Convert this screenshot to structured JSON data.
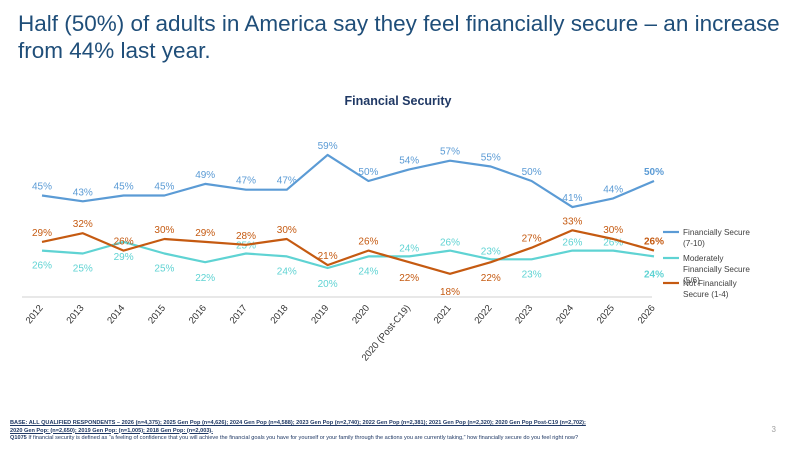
{
  "headline": "Half (50%) of adults in America say they feel financially secure – an increase from 44% last year.",
  "page_number": "3",
  "footer": {
    "base_line1": "BASE: ALL QUALIFIED RESPONDENTS – 2026 (n=4,375); 2025 Gen Pop (n=4,626); 2024 Gen Pop (n=4,588); 2023 Gen Pop (n=2,740); 2022 Gen Pop (n=2,381); 2021 Gen Pop (n=2,320); 2020 Gen Pop Post-C19 (n=2,702);",
    "base_line2": "2020 Gen Pop: (n=2,650); 2019 Gen Pop: (n=1,005); 2018 Gen Pop: (n=2,003).",
    "question_id": "Q1075",
    "question_text": " If financial security is defined as “a feeling of confidence that you will achieve the financial goals you have for yourself or your family through the actions you are currently taking,” how financially secure do you feel right now?"
  },
  "chart_data": {
    "type": "line",
    "title": "Financial Security",
    "xlabel": "",
    "ylabel": "",
    "ylim": [
      10,
      65
    ],
    "grid": false,
    "legend_position": "right",
    "categories": [
      "2012",
      "2013",
      "2014",
      "2015",
      "2016",
      "2017",
      "2018",
      "2019",
      "2020",
      "2020 (Post-C19)",
      "2021",
      "2022",
      "2023",
      "2024",
      "2025",
      "2026"
    ],
    "series": [
      {
        "name": "Financially Secure (7-10)",
        "color": "#5B9BD5",
        "values": [
          45,
          43,
          45,
          45,
          49,
          47,
          47,
          59,
          50,
          54,
          57,
          55,
          50,
          41,
          44,
          50
        ]
      },
      {
        "name": "Moderately Financially Secure (5/6)",
        "color": "#5FD3D3",
        "values": [
          26,
          25,
          29,
          25,
          22,
          25,
          24,
          20,
          24,
          24,
          26,
          23,
          23,
          26,
          26,
          24
        ]
      },
      {
        "name": "Not Financially Secure (1-4)",
        "color": "#C55A11",
        "values": [
          29,
          32,
          26,
          30,
          29,
          28,
          30,
          21,
          26,
          22,
          18,
          22,
          27,
          33,
          30,
          26
        ]
      }
    ],
    "value_suffix": "%"
  }
}
